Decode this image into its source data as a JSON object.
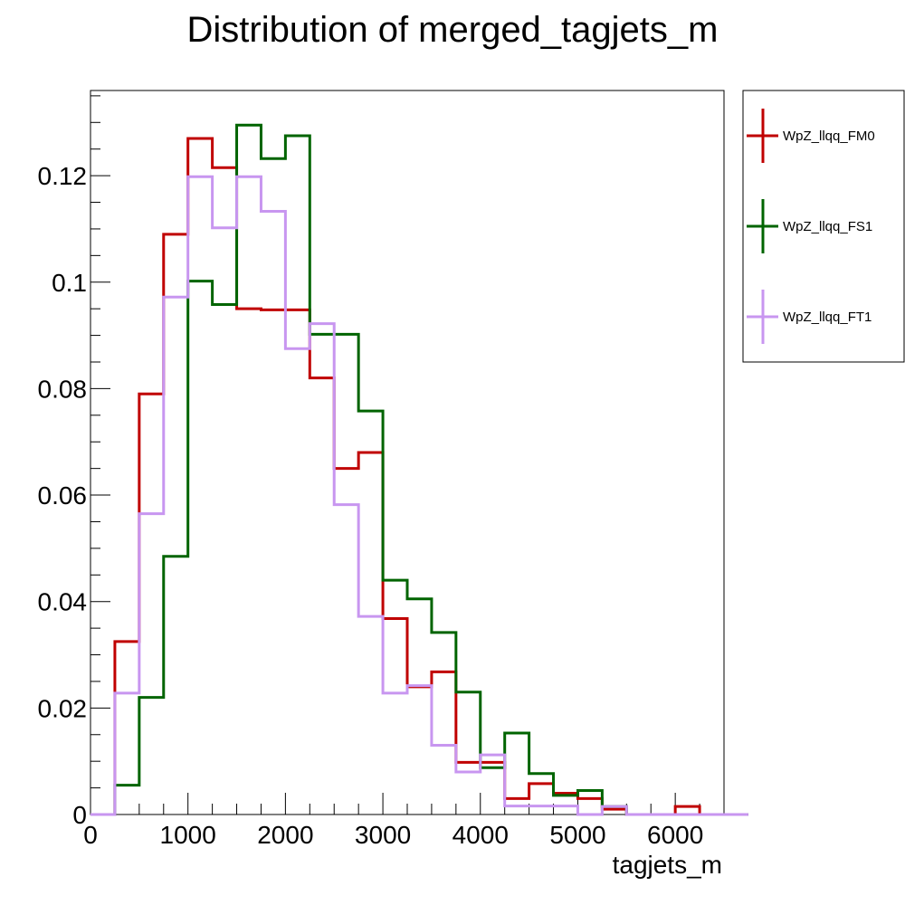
{
  "chart_data": {
    "type": "step-histogram",
    "title": "Distribution of merged_tagjets_m",
    "xlabel": "tagjets_m",
    "ylabel": "",
    "xlim": [
      0,
      6500
    ],
    "ylim": [
      0,
      0.136
    ],
    "bin_width": 250,
    "bin_start": 0,
    "x_ticks": [
      0,
      1000,
      2000,
      3000,
      4000,
      5000,
      6000
    ],
    "y_ticks": [
      0,
      0.02,
      0.04,
      0.06,
      0.08,
      0.1,
      0.12
    ],
    "x_tick_labels": [
      "0",
      "1000",
      "2000",
      "3000",
      "4000",
      "5000",
      "6000"
    ],
    "y_tick_labels": [
      "0",
      "0.02",
      "0.04",
      "0.06",
      "0.08",
      "0.1",
      "0.12"
    ],
    "legend_position": "right-outside-top",
    "series": [
      {
        "name": "WpZ_llqq_FM0",
        "color": "#c00000",
        "values": [
          0,
          0.0325,
          0.079,
          0.109,
          0.127,
          0.1215,
          0.095,
          0.0948,
          0.0948,
          0.082,
          0.065,
          0.068,
          0.0368,
          0.024,
          0.0268,
          0.0098,
          0.0098,
          0.003,
          0.0058,
          0.004,
          0.003,
          0.001,
          0,
          0,
          0.0015,
          0,
          0
        ]
      },
      {
        "name": "WpZ_llqq_FS1",
        "color": "#006400",
        "values": [
          0,
          0.0055,
          0.022,
          0.0485,
          0.1002,
          0.0958,
          0.1295,
          0.1232,
          0.1275,
          0.0902,
          0.0902,
          0.0758,
          0.044,
          0.0405,
          0.0342,
          0.023,
          0.0088,
          0.0153,
          0.0077,
          0.0036,
          0.0045,
          0.0015,
          0,
          0,
          0,
          0,
          0
        ]
      },
      {
        "name": "WpZ_llqq_FT1",
        "color": "#c896f0",
        "values": [
          0,
          0.0228,
          0.0565,
          0.0972,
          0.1198,
          0.1102,
          0.1198,
          0.1133,
          0.0875,
          0.0922,
          0.0582,
          0.0372,
          0.0228,
          0.0242,
          0.013,
          0.008,
          0.0112,
          0.0016,
          0.0016,
          0.0016,
          0,
          0.0015,
          0,
          0,
          0,
          0,
          0
        ]
      }
    ]
  }
}
